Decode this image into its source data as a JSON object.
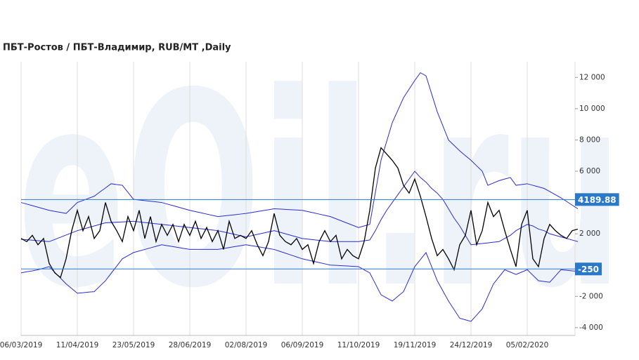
{
  "chart_data": {
    "type": "line",
    "title": "ПБТ-Ростов / ПБТ-Владимир,  RUB/MT ,Daily",
    "watermark": "eOil.ru",
    "categories": [
      "06/03/2019",
      null,
      null,
      null,
      null,
      null,
      null,
      null,
      null,
      null,
      "11/04/2019",
      null,
      null,
      null,
      null,
      null,
      null,
      null,
      null,
      null,
      "23/05/2019",
      null,
      null,
      null,
      null,
      null,
      null,
      null,
      null,
      null,
      "28/06/2019",
      null,
      null,
      null,
      null,
      null,
      null,
      null,
      null,
      null,
      "02/08/2019",
      null,
      null,
      null,
      null,
      null,
      null,
      null,
      null,
      null,
      "06/09/2019",
      null,
      null,
      null,
      null,
      null,
      null,
      null,
      null,
      null,
      "11/10/2019",
      null,
      null,
      null,
      null,
      null,
      null,
      null,
      null,
      null,
      "19/11/2019",
      null,
      null,
      null,
      null,
      null,
      null,
      null,
      null,
      null,
      "24/12/2019",
      null,
      null,
      null,
      null,
      null,
      null,
      null,
      null,
      null,
      "05/02/2020",
      null,
      null,
      null,
      null,
      null,
      null,
      null,
      null,
      null
    ],
    "series": [
      {
        "color": "#2b2bd0",
        "values": [
          4000,
          3900,
          3800,
          3700,
          3600,
          3500,
          3430,
          3370,
          3300,
          3650,
          4000,
          4130,
          4270,
          4400,
          4670,
          4930,
          5200,
          5150,
          5100,
          4650,
          4200,
          4160,
          4120,
          4080,
          4040,
          4000,
          3900,
          3800,
          3700,
          3600,
          3500,
          3420,
          3340,
          3260,
          3180,
          3100,
          3140,
          3180,
          3220,
          3260,
          3300,
          3360,
          3420,
          3480,
          3540,
          3600,
          3580,
          3560,
          3540,
          3520,
          3500,
          3420,
          3340,
          3260,
          3180,
          3100,
          2960,
          2820,
          2680,
          2540,
          2400,
          2500,
          2600,
          4650,
          6700,
          7900,
          9100,
          9900,
          10700,
          11250,
          11800,
          12300,
          12100,
          10950,
          9800,
          8900,
          8000,
          7650,
          7300,
          7000,
          6700,
          6350,
          6000,
          5100,
          5250,
          5400,
          5500,
          5600,
          5100,
          5150,
          5200,
          5100,
          5000,
          4900,
          4700,
          4500,
          4300,
          4070,
          3830,
          3600
        ]
      },
      {
        "color": "#2b2bd0",
        "values": [
          1650,
          1620,
          1590,
          1560,
          1530,
          1500,
          1640,
          1780,
          1920,
          2060,
          2200,
          2300,
          2400,
          2500,
          2600,
          2700,
          2720,
          2740,
          2760,
          2780,
          2800,
          2760,
          2720,
          2680,
          2640,
          2600,
          2560,
          2520,
          2480,
          2440,
          2400,
          2360,
          2320,
          2280,
          2240,
          2200,
          2120,
          2040,
          1960,
          1880,
          1800,
          1880,
          1960,
          2040,
          2120,
          2200,
          2100,
          2000,
          1900,
          1800,
          1700,
          1660,
          1620,
          1580,
          1540,
          1500,
          1500,
          1500,
          1500,
          1500,
          1500,
          1550,
          1600,
          2200,
          2900,
          3500,
          4000,
          4500,
          5000,
          5500,
          6000,
          5600,
          5300,
          4900,
          4600,
          4200,
          3600,
          3000,
          2500,
          1900,
          1300,
          1340,
          1380,
          1420,
          1460,
          1500,
          1700,
          1900,
          2200,
          2400,
          2600,
          2500,
          2300,
          2200,
          2000,
          1900,
          1800,
          1700,
          1600,
          1500
        ]
      },
      {
        "color": "#2b2bd0",
        "values": [
          -500,
          -430,
          -370,
          -300,
          -200,
          -100,
          -470,
          -830,
          -1200,
          -1500,
          -1800,
          -1770,
          -1730,
          -1700,
          -1350,
          -1000,
          -530,
          -70,
          400,
          600,
          800,
          900,
          1000,
          1100,
          1200,
          1300,
          1240,
          1180,
          1120,
          1060,
          1000,
          1000,
          1000,
          1000,
          1000,
          1000,
          1060,
          1120,
          1180,
          1240,
          1300,
          1240,
          1180,
          1120,
          1060,
          1000,
          880,
          760,
          640,
          520,
          400,
          320,
          240,
          160,
          80,
          0,
          -20,
          -40,
          -60,
          -80,
          -100,
          -300,
          -500,
          -1200,
          -1900,
          -2100,
          -2300,
          -2000,
          -1700,
          -900,
          -100,
          350,
          800,
          -100,
          -1000,
          -1650,
          -2300,
          -2850,
          -3400,
          -3500,
          -3600,
          -3200,
          -2800,
          -2000,
          -1200,
          -750,
          -300,
          -450,
          -600,
          -450,
          -300,
          -650,
          -1000,
          -1050,
          -1100,
          -700,
          -300,
          -330,
          -370,
          -400
        ]
      },
      {
        "color": "#000000",
        "values": [
          1700,
          1500,
          1900,
          1300,
          1700,
          100,
          -500,
          -800,
          400,
          2200,
          3500,
          2200,
          3100,
          1700,
          2200,
          4000,
          2800,
          2200,
          1500,
          3100,
          2200,
          3500,
          1700,
          3100,
          1500,
          2600,
          1900,
          2600,
          1500,
          2600,
          1900,
          2800,
          1700,
          2400,
          1500,
          2200,
          1000,
          2800,
          1700,
          1900,
          1700,
          2200,
          1300,
          600,
          1500,
          3300,
          1900,
          1500,
          1300,
          1700,
          1000,
          1300,
          100,
          1500,
          2200,
          1500,
          1900,
          400,
          1000,
          600,
          400,
          1500,
          3500,
          6200,
          7500,
          7100,
          6700,
          6200,
          5100,
          4600,
          5500,
          4400,
          3100,
          1700,
          600,
          1000,
          400,
          -300,
          1300,
          1900,
          3500,
          1300,
          2200,
          4000,
          3100,
          3500,
          2200,
          1000,
          -100,
          2600,
          3500,
          400,
          -100,
          1700,
          2600,
          2200,
          1900,
          1700,
          2200,
          2300
        ]
      }
    ],
    "hlines": [
      4189.88,
      -250
    ],
    "hline_color": "#2a79c9",
    "ylim": [
      -4500,
      13000
    ],
    "yticks": [
      {
        "value": -4000,
        "label": "-4 000"
      },
      {
        "value": -2000,
        "label": "-2 000"
      },
      {
        "value": 2000,
        "label": "2 000"
      },
      {
        "value": 6000,
        "label": "6 000"
      },
      {
        "value": 8000,
        "label": "8 000"
      },
      {
        "value": 10000,
        "label": "10 000"
      },
      {
        "value": 12000,
        "label": "12 000"
      }
    ],
    "grid": true
  }
}
